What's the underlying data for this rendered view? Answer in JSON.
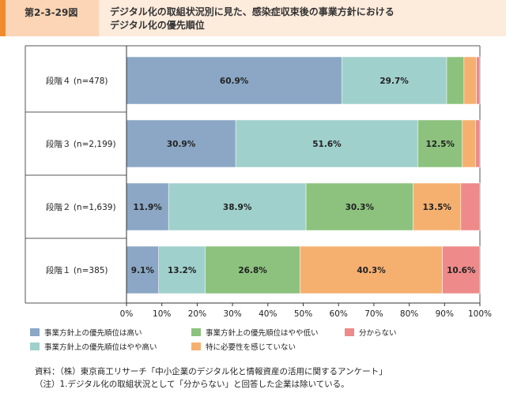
{
  "header": {
    "figure_number": "第2-3-29図",
    "title_lines": [
      "デジタル化の取組状況別に見た、感染症収束後の事業方針における",
      "デジタル化の優先順位"
    ]
  },
  "colors": {
    "series": [
      "#8ba7c5",
      "#a0d0cc",
      "#8cc27e",
      "#f5b070",
      "#ee8a8a"
    ],
    "header_accent": "#f08a2c"
  },
  "chart_data": {
    "type": "bar",
    "orientation": "horizontal",
    "stacked": true,
    "categories": [
      "段階４ (n=478)",
      "段階３ (n=2,199)",
      "段階２ (n=1,639)",
      "段階１ (n=385)"
    ],
    "series": [
      {
        "name": "事業方針上の優先順位は高い",
        "values": [
          60.9,
          30.9,
          11.9,
          9.1
        ]
      },
      {
        "name": "事業方針上の優先順位はやや高い",
        "values": [
          29.7,
          51.6,
          38.9,
          13.2
        ]
      },
      {
        "name": "事業方針上の優先順位はやや低い",
        "values": [
          4.9,
          12.5,
          30.3,
          26.8
        ]
      },
      {
        "name": "特に必要性を感じていない",
        "values": [
          3.5,
          3.8,
          13.5,
          40.3
        ]
      },
      {
        "name": "分からない",
        "values": [
          1.0,
          1.2,
          5.4,
          10.6
        ]
      }
    ],
    "data_labels": [
      [
        "60.9%",
        "29.7%",
        "",
        "",
        ""
      ],
      [
        "30.9%",
        "51.6%",
        "12.5%",
        "",
        ""
      ],
      [
        "11.9%",
        "38.9%",
        "30.3%",
        "13.5%",
        ""
      ],
      [
        "9.1%",
        "13.2%",
        "26.8%",
        "40.3%",
        "10.6%"
      ]
    ],
    "x_ticks": [
      "0%",
      "10%",
      "20%",
      "30%",
      "40%",
      "50%",
      "60%",
      "70%",
      "80%",
      "90%",
      "100%"
    ],
    "xlim": [
      0,
      100
    ],
    "grid": false,
    "legend_placement": "bottom"
  },
  "footer": {
    "source": "資料：（株）東京商工リサーチ「中小企業のデジタル化と情報資産の活用に関するアンケート」",
    "note": "（注）1.デジタル化の取組状況として「分からない」と回答した企業は除いている。"
  }
}
